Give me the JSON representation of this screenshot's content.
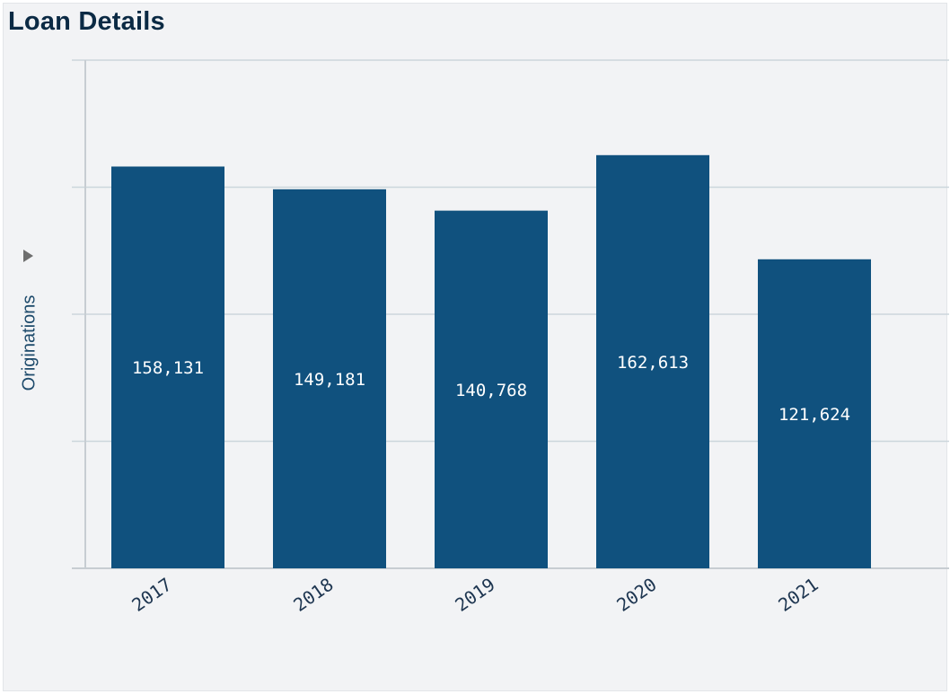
{
  "page": {
    "title": "Loan Details"
  },
  "chart_data": {
    "type": "bar",
    "title": "Loan Details",
    "xlabel": "",
    "ylabel": "Originations",
    "categories": [
      "2017",
      "2018",
      "2019",
      "2020",
      "2021"
    ],
    "values": [
      158131,
      149181,
      140768,
      162613,
      121624
    ],
    "value_labels": [
      "158,131",
      "149,181",
      "140,768",
      "162,613",
      "121,624"
    ],
    "ylim": [
      0,
      200000
    ],
    "grid": true,
    "legend": "none",
    "colors": {
      "bar": "#10517e",
      "grid": "#ccd6dc",
      "axis": "#c7cdd2",
      "background": "#f2f3f5"
    }
  }
}
